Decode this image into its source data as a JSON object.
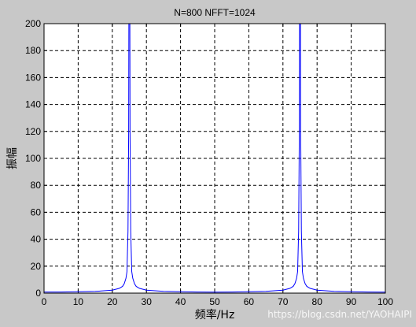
{
  "chart_data": {
    "type": "line",
    "title": "N=800 NFFT=1024",
    "xlabel": "频率/Hz",
    "ylabel": "振幅",
    "xlim": [
      0,
      100
    ],
    "ylim": [
      0,
      200
    ],
    "xticks": [
      0,
      10,
      20,
      30,
      40,
      50,
      60,
      70,
      80,
      90,
      100
    ],
    "yticks": [
      0,
      20,
      40,
      60,
      80,
      100,
      120,
      140,
      160,
      180,
      200
    ],
    "grid": true,
    "grid_style": "dashed",
    "series": [
      {
        "color": "#0000ff",
        "x": [
          0,
          5,
          10,
          15,
          18,
          20,
          22,
          23,
          23.5,
          24,
          24.3,
          24.6,
          24.8,
          25,
          25.2,
          25.4,
          25.7,
          26,
          26.5,
          27,
          28,
          30,
          35,
          40,
          45,
          50,
          55,
          60,
          65,
          70,
          72,
          73,
          73.5,
          74,
          74.3,
          74.6,
          74.8,
          75,
          75.2,
          75.4,
          75.7,
          76,
          76.5,
          77,
          78,
          80,
          85,
          90,
          95,
          100
        ],
        "y": [
          0.8,
          0.8,
          1.0,
          1.3,
          1.8,
          2.2,
          3.5,
          5,
          7,
          11,
          16,
          46,
          120,
          400,
          120,
          46,
          16,
          11,
          7,
          5,
          3.5,
          2.2,
          1.3,
          1.0,
          0.8,
          0.7,
          0.8,
          1.0,
          1.3,
          2.2,
          3.5,
          5,
          7,
          11,
          16,
          46,
          120,
          400,
          120,
          46,
          16,
          11,
          7,
          5,
          3.5,
          2.2,
          1.3,
          1.0,
          0.8,
          0.7
        ]
      }
    ]
  },
  "watermark": "https://blog.csdn.net/YAOHAIPI"
}
